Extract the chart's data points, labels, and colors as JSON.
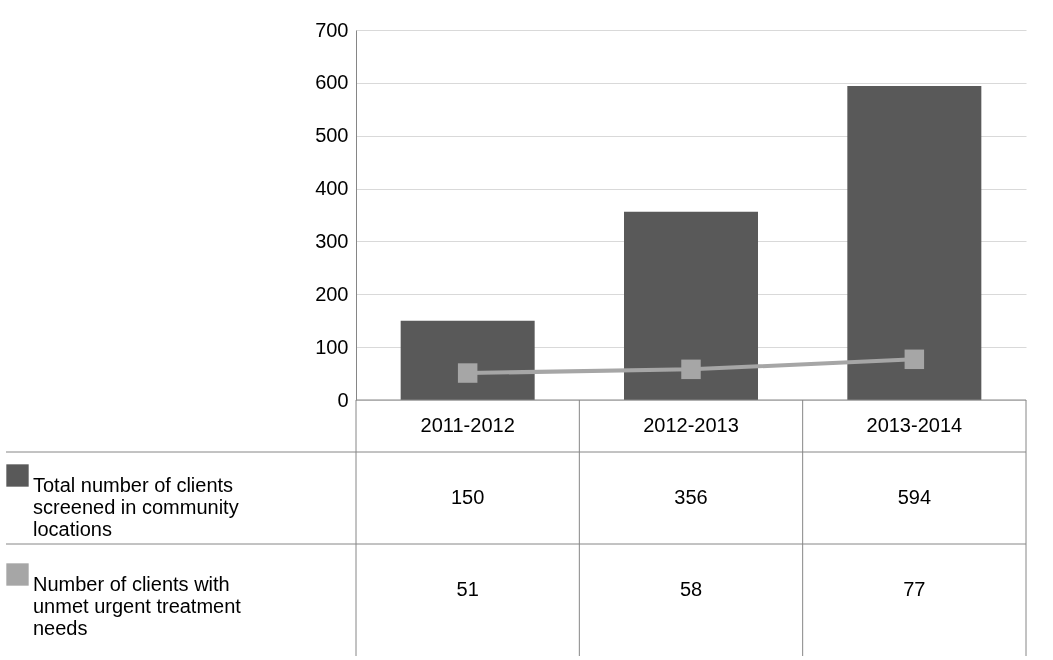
{
  "chart_data": {
    "type": "bar",
    "categories": [
      "2011-2012",
      "2012-2013",
      "2013-2014"
    ],
    "series": [
      {
        "name": "Total number of clients screened in community locations",
        "color": "#595959",
        "values": [
          150,
          356,
          594
        ]
      },
      {
        "name": "Number of clients with unmet urgent treatment needs",
        "type": "line",
        "color": "#a6a6a6",
        "values": [
          51,
          58,
          77
        ]
      }
    ],
    "ylim": [
      0,
      700
    ],
    "yticks": [
      0,
      100,
      200,
      300,
      400,
      500,
      600,
      700
    ],
    "grid": "y",
    "legend": "bottom",
    "data_labels": true,
    "marker": "square"
  }
}
